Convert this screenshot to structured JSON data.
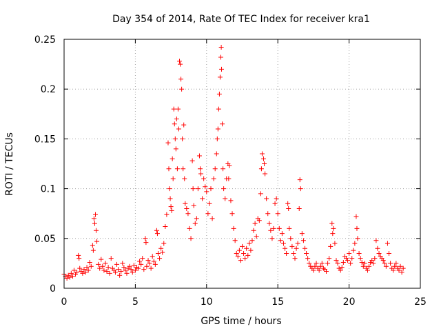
{
  "chart_data": {
    "type": "scatter",
    "title": "Day 354 of 2014, Rate Of TEC Index for receiver kra1",
    "xlabel": "GPS time / hours",
    "ylabel": "ROTI / TECUs",
    "xlim": [
      0,
      25
    ],
    "ylim": [
      0,
      0.25
    ],
    "xticks": [
      0,
      5,
      10,
      15,
      20,
      25
    ],
    "xtick_labels": [
      "0",
      "5",
      "10",
      "15",
      "20",
      "25"
    ],
    "yticks": [
      0,
      0.05,
      0.1,
      0.15,
      0.2,
      0.25
    ],
    "ytick_labels": [
      "0",
      "0.05",
      "0.1",
      "0.15",
      "0.2",
      "0.25"
    ],
    "grid": true,
    "marker": "+",
    "color": "#ff0000",
    "series": [
      {
        "name": "kra1",
        "points": [
          [
            0.0,
            0.014
          ],
          [
            0.1,
            0.012
          ],
          [
            0.2,
            0.01
          ],
          [
            0.3,
            0.013
          ],
          [
            0.4,
            0.011
          ],
          [
            0.5,
            0.015
          ],
          [
            0.6,
            0.012
          ],
          [
            0.7,
            0.018
          ],
          [
            0.8,
            0.014
          ],
          [
            0.9,
            0.016
          ],
          [
            1.0,
            0.033
          ],
          [
            1.05,
            0.03
          ],
          [
            1.1,
            0.02
          ],
          [
            1.2,
            0.017
          ],
          [
            1.3,
            0.015
          ],
          [
            1.4,
            0.019
          ],
          [
            1.5,
            0.016
          ],
          [
            1.6,
            0.021
          ],
          [
            1.7,
            0.018
          ],
          [
            1.8,
            0.026
          ],
          [
            1.9,
            0.022
          ],
          [
            2.0,
            0.043
          ],
          [
            2.05,
            0.038
          ],
          [
            2.1,
            0.07
          ],
          [
            2.15,
            0.065
          ],
          [
            2.2,
            0.074
          ],
          [
            2.25,
            0.058
          ],
          [
            2.3,
            0.047
          ],
          [
            2.4,
            0.024
          ],
          [
            2.5,
            0.02
          ],
          [
            2.6,
            0.029
          ],
          [
            2.7,
            0.022
          ],
          [
            2.8,
            0.018
          ],
          [
            2.9,
            0.025
          ],
          [
            3.0,
            0.017
          ],
          [
            3.1,
            0.021
          ],
          [
            3.2,
            0.015
          ],
          [
            3.3,
            0.03
          ],
          [
            3.4,
            0.02
          ],
          [
            3.5,
            0.018
          ],
          [
            3.6,
            0.016
          ],
          [
            3.7,
            0.024
          ],
          [
            3.8,
            0.019
          ],
          [
            3.9,
            0.013
          ],
          [
            4.0,
            0.017
          ],
          [
            4.1,
            0.025
          ],
          [
            4.2,
            0.021
          ],
          [
            4.3,
            0.018
          ],
          [
            4.4,
            0.015
          ],
          [
            4.5,
            0.02
          ],
          [
            4.6,
            0.022
          ],
          [
            4.7,
            0.019
          ],
          [
            4.8,
            0.016
          ],
          [
            4.9,
            0.023
          ],
          [
            5.0,
            0.018
          ],
          [
            5.1,
            0.021
          ],
          [
            5.2,
            0.02
          ],
          [
            5.3,
            0.027
          ],
          [
            5.4,
            0.024
          ],
          [
            5.5,
            0.03
          ],
          [
            5.6,
            0.019
          ],
          [
            5.7,
            0.05
          ],
          [
            5.75,
            0.046
          ],
          [
            5.8,
            0.022
          ],
          [
            5.9,
            0.028
          ],
          [
            6.0,
            0.025
          ],
          [
            6.1,
            0.02
          ],
          [
            6.2,
            0.032
          ],
          [
            6.3,
            0.027
          ],
          [
            6.4,
            0.024
          ],
          [
            6.5,
            0.058
          ],
          [
            6.55,
            0.055
          ],
          [
            6.6,
            0.035
          ],
          [
            6.7,
            0.03
          ],
          [
            6.8,
            0.04
          ],
          [
            6.9,
            0.036
          ],
          [
            7.0,
            0.045
          ],
          [
            7.1,
            0.062
          ],
          [
            7.2,
            0.074
          ],
          [
            7.3,
            0.146
          ],
          [
            7.35,
            0.12
          ],
          [
            7.4,
            0.1
          ],
          [
            7.45,
            0.09
          ],
          [
            7.5,
            0.082
          ],
          [
            7.55,
            0.078
          ],
          [
            7.6,
            0.13
          ],
          [
            7.65,
            0.11
          ],
          [
            7.7,
            0.18
          ],
          [
            7.75,
            0.165
          ],
          [
            7.8,
            0.15
          ],
          [
            7.85,
            0.14
          ],
          [
            7.9,
            0.17
          ],
          [
            7.95,
            0.12
          ],
          [
            8.0,
            0.18
          ],
          [
            8.05,
            0.16
          ],
          [
            8.1,
            0.228
          ],
          [
            8.15,
            0.225
          ],
          [
            8.2,
            0.21
          ],
          [
            8.25,
            0.2
          ],
          [
            8.3,
            0.15
          ],
          [
            8.35,
            0.12
          ],
          [
            8.4,
            0.164
          ],
          [
            8.45,
            0.11
          ],
          [
            8.5,
            0.085
          ],
          [
            8.6,
            0.08
          ],
          [
            8.7,
            0.075
          ],
          [
            8.8,
            0.06
          ],
          [
            8.9,
            0.05
          ],
          [
            9.0,
            0.128
          ],
          [
            9.05,
            0.1
          ],
          [
            9.1,
            0.083
          ],
          [
            9.2,
            0.065
          ],
          [
            9.3,
            0.07
          ],
          [
            9.4,
            0.1
          ],
          [
            9.5,
            0.133
          ],
          [
            9.55,
            0.12
          ],
          [
            9.6,
            0.115
          ],
          [
            9.7,
            0.09
          ],
          [
            9.8,
            0.11
          ],
          [
            9.9,
            0.102
          ],
          [
            10.0,
            0.097
          ],
          [
            10.1,
            0.075
          ],
          [
            10.2,
            0.085
          ],
          [
            10.3,
            0.1
          ],
          [
            10.4,
            0.07
          ],
          [
            10.5,
            0.11
          ],
          [
            10.6,
            0.12
          ],
          [
            10.7,
            0.135
          ],
          [
            10.75,
            0.15
          ],
          [
            10.8,
            0.16
          ],
          [
            10.85,
            0.18
          ],
          [
            10.9,
            0.195
          ],
          [
            10.95,
            0.212
          ],
          [
            11.0,
            0.232
          ],
          [
            11.03,
            0.242
          ],
          [
            11.05,
            0.22
          ],
          [
            11.1,
            0.165
          ],
          [
            11.15,
            0.12
          ],
          [
            11.2,
            0.1
          ],
          [
            11.3,
            0.09
          ],
          [
            11.4,
            0.11
          ],
          [
            11.5,
            0.125
          ],
          [
            11.55,
            0.11
          ],
          [
            11.6,
            0.123
          ],
          [
            11.7,
            0.088
          ],
          [
            11.8,
            0.075
          ],
          [
            11.9,
            0.06
          ],
          [
            12.0,
            0.048
          ],
          [
            12.1,
            0.035
          ],
          [
            12.2,
            0.032
          ],
          [
            12.3,
            0.038
          ],
          [
            12.4,
            0.028
          ],
          [
            12.5,
            0.042
          ],
          [
            12.6,
            0.035
          ],
          [
            12.7,
            0.03
          ],
          [
            12.8,
            0.04
          ],
          [
            12.9,
            0.033
          ],
          [
            13.0,
            0.045
          ],
          [
            13.1,
            0.038
          ],
          [
            13.2,
            0.048
          ],
          [
            13.3,
            0.058
          ],
          [
            13.4,
            0.065
          ],
          [
            13.5,
            0.052
          ],
          [
            13.6,
            0.07
          ],
          [
            13.7,
            0.068
          ],
          [
            13.8,
            0.095
          ],
          [
            13.85,
            0.12
          ],
          [
            13.9,
            0.135
          ],
          [
            14.0,
            0.13
          ],
          [
            14.05,
            0.125
          ],
          [
            14.1,
            0.115
          ],
          [
            14.2,
            0.09
          ],
          [
            14.3,
            0.075
          ],
          [
            14.4,
            0.065
          ],
          [
            14.5,
            0.058
          ],
          [
            14.6,
            0.05
          ],
          [
            14.7,
            0.06
          ],
          [
            14.8,
            0.085
          ],
          [
            14.9,
            0.09
          ],
          [
            15.0,
            0.075
          ],
          [
            15.1,
            0.06
          ],
          [
            15.2,
            0.048
          ],
          [
            15.3,
            0.055
          ],
          [
            15.4,
            0.045
          ],
          [
            15.5,
            0.04
          ],
          [
            15.6,
            0.035
          ],
          [
            15.7,
            0.085
          ],
          [
            15.75,
            0.08
          ],
          [
            15.8,
            0.06
          ],
          [
            15.9,
            0.05
          ],
          [
            16.0,
            0.042
          ],
          [
            16.1,
            0.035
          ],
          [
            16.2,
            0.03
          ],
          [
            16.3,
            0.04
          ],
          [
            16.4,
            0.045
          ],
          [
            16.5,
            0.08
          ],
          [
            16.55,
            0.109
          ],
          [
            16.6,
            0.1
          ],
          [
            16.7,
            0.055
          ],
          [
            16.8,
            0.048
          ],
          [
            16.9,
            0.04
          ],
          [
            17.0,
            0.035
          ],
          [
            17.1,
            0.03
          ],
          [
            17.2,
            0.025
          ],
          [
            17.3,
            0.022
          ],
          [
            17.4,
            0.02
          ],
          [
            17.5,
            0.018
          ],
          [
            17.6,
            0.022
          ],
          [
            17.7,
            0.025
          ],
          [
            17.8,
            0.02
          ],
          [
            17.9,
            0.018
          ],
          [
            18.0,
            0.022
          ],
          [
            18.1,
            0.025
          ],
          [
            18.2,
            0.02
          ],
          [
            18.3,
            0.019
          ],
          [
            18.4,
            0.017
          ],
          [
            18.5,
            0.025
          ],
          [
            18.6,
            0.03
          ],
          [
            18.7,
            0.042
          ],
          [
            18.8,
            0.065
          ],
          [
            18.85,
            0.055
          ],
          [
            18.9,
            0.06
          ],
          [
            19.0,
            0.045
          ],
          [
            19.1,
            0.028
          ],
          [
            19.2,
            0.025
          ],
          [
            19.3,
            0.02
          ],
          [
            19.4,
            0.018
          ],
          [
            19.5,
            0.021
          ],
          [
            19.6,
            0.026
          ],
          [
            19.7,
            0.032
          ],
          [
            19.8,
            0.03
          ],
          [
            19.9,
            0.028
          ],
          [
            20.0,
            0.035
          ],
          [
            20.1,
            0.025
          ],
          [
            20.2,
            0.03
          ],
          [
            20.3,
            0.038
          ],
          [
            20.4,
            0.045
          ],
          [
            20.5,
            0.072
          ],
          [
            20.55,
            0.06
          ],
          [
            20.6,
            0.05
          ],
          [
            20.7,
            0.035
          ],
          [
            20.8,
            0.03
          ],
          [
            20.9,
            0.026
          ],
          [
            21.0,
            0.022
          ],
          [
            21.1,
            0.025
          ],
          [
            21.2,
            0.02
          ],
          [
            21.3,
            0.018
          ],
          [
            21.4,
            0.022
          ],
          [
            21.5,
            0.026
          ],
          [
            21.6,
            0.028
          ],
          [
            21.7,
            0.025
          ],
          [
            21.8,
            0.03
          ],
          [
            21.9,
            0.048
          ],
          [
            22.0,
            0.04
          ],
          [
            22.1,
            0.035
          ],
          [
            22.2,
            0.032
          ],
          [
            22.3,
            0.03
          ],
          [
            22.4,
            0.028
          ],
          [
            22.5,
            0.025
          ],
          [
            22.6,
            0.022
          ],
          [
            22.7,
            0.045
          ],
          [
            22.8,
            0.035
          ],
          [
            22.9,
            0.025
          ],
          [
            23.0,
            0.02
          ],
          [
            23.1,
            0.018
          ],
          [
            23.2,
            0.022
          ],
          [
            23.3,
            0.025
          ],
          [
            23.4,
            0.02
          ],
          [
            23.5,
            0.018
          ],
          [
            23.6,
            0.022
          ],
          [
            23.7,
            0.016
          ],
          [
            23.8,
            0.02
          ]
        ]
      }
    ]
  }
}
